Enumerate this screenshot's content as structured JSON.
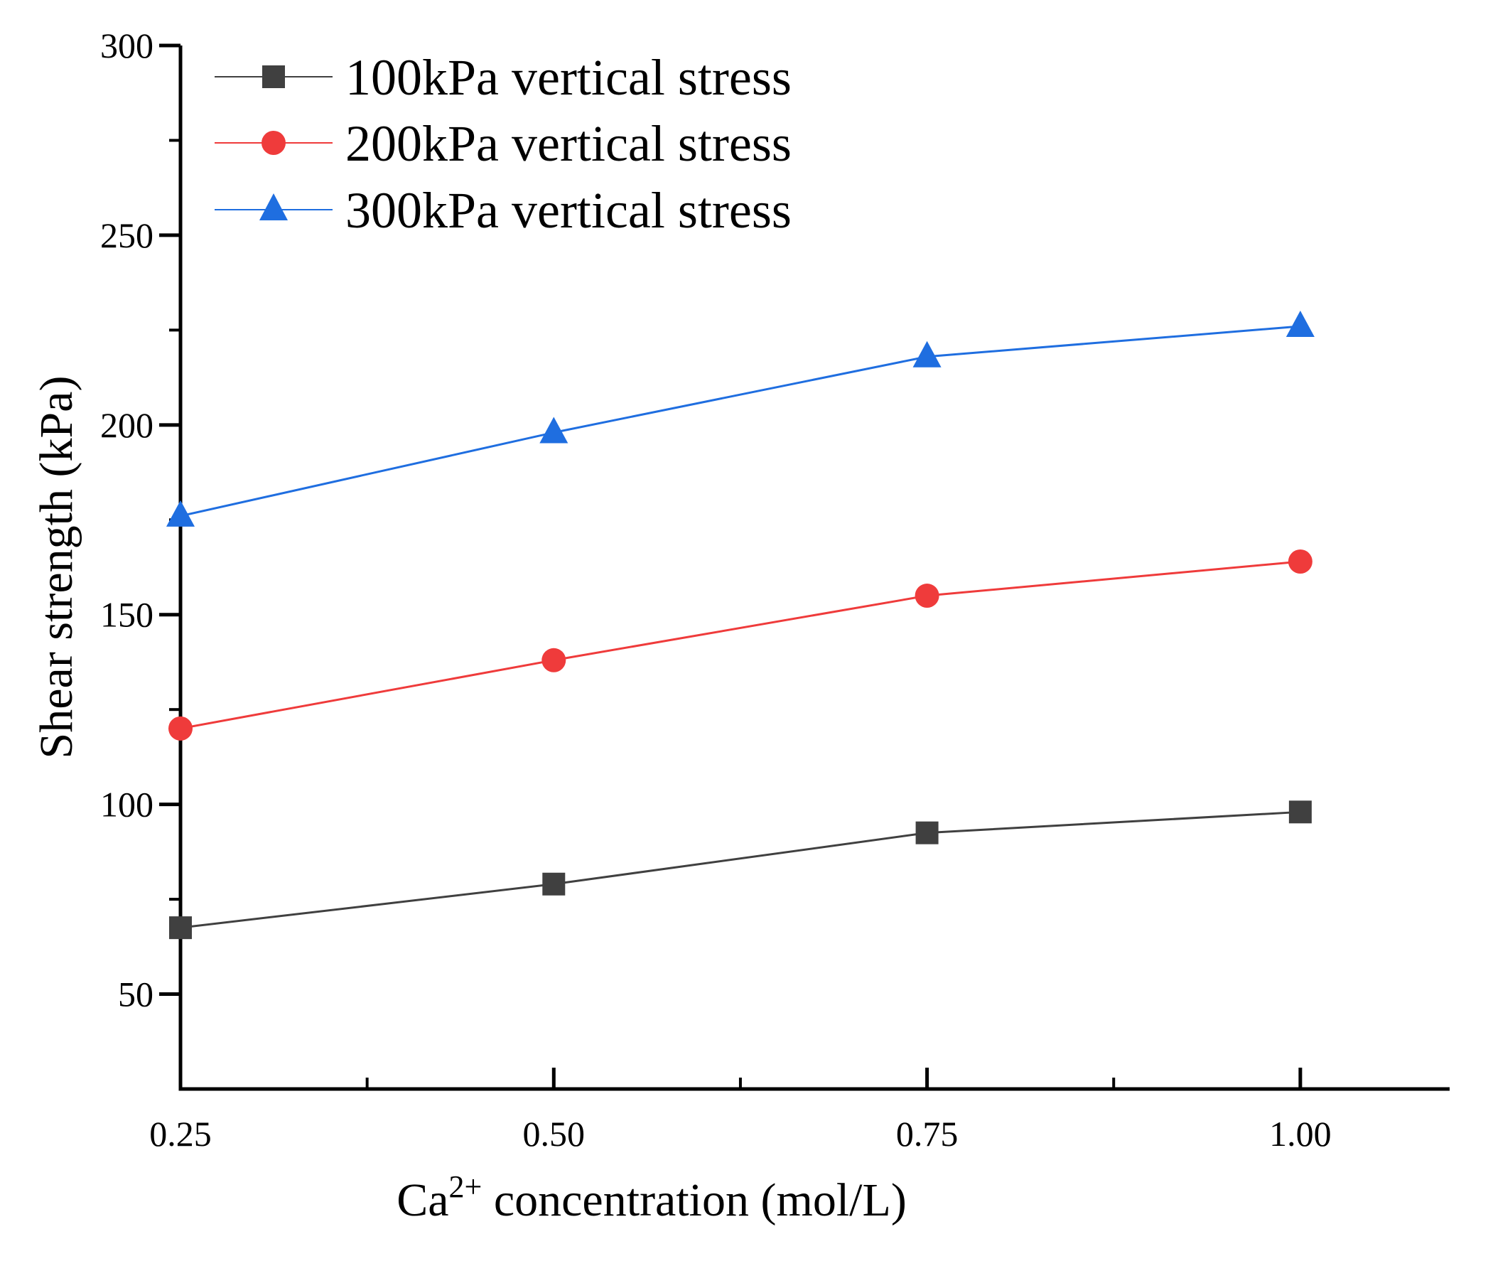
{
  "chart_data": {
    "type": "line",
    "title": "",
    "xlabel": {
      "prefix": "Ca",
      "superscript": "2+",
      "suffix": " concentration (mol/L)"
    },
    "ylabel": "Shear strength (kPa)",
    "xlim": [
      0.25,
      1.1
    ],
    "ylim": [
      25,
      300
    ],
    "x_ticks": [
      0.25,
      0.5,
      0.75,
      1.0
    ],
    "x_tick_labels": [
      "0.25",
      "0.50",
      "0.75",
      "1.00"
    ],
    "x_minor_ticks": [
      0.375,
      0.625,
      0.875
    ],
    "y_ticks": [
      50,
      100,
      150,
      200,
      250,
      300
    ],
    "y_tick_labels": [
      "50",
      "100",
      "150",
      "200",
      "250",
      "300"
    ],
    "y_minor_ticks": [
      75,
      125,
      175,
      225,
      275
    ],
    "grid": false,
    "legend_position": "top-left",
    "x": [
      0.25,
      0.5,
      0.75,
      1.0
    ],
    "series": [
      {
        "name": "100kPa vertical stress",
        "marker": "square",
        "color": "#404040",
        "values": [
          67.5,
          79,
          92.5,
          98
        ]
      },
      {
        "name": "200kPa vertical stress",
        "marker": "circle",
        "color": "#ef3b3b",
        "values": [
          120,
          138,
          155,
          164
        ]
      },
      {
        "name": "300kPa vertical stress",
        "marker": "triangle",
        "color": "#1f6ee0",
        "values": [
          176,
          198,
          218,
          226
        ]
      }
    ]
  }
}
